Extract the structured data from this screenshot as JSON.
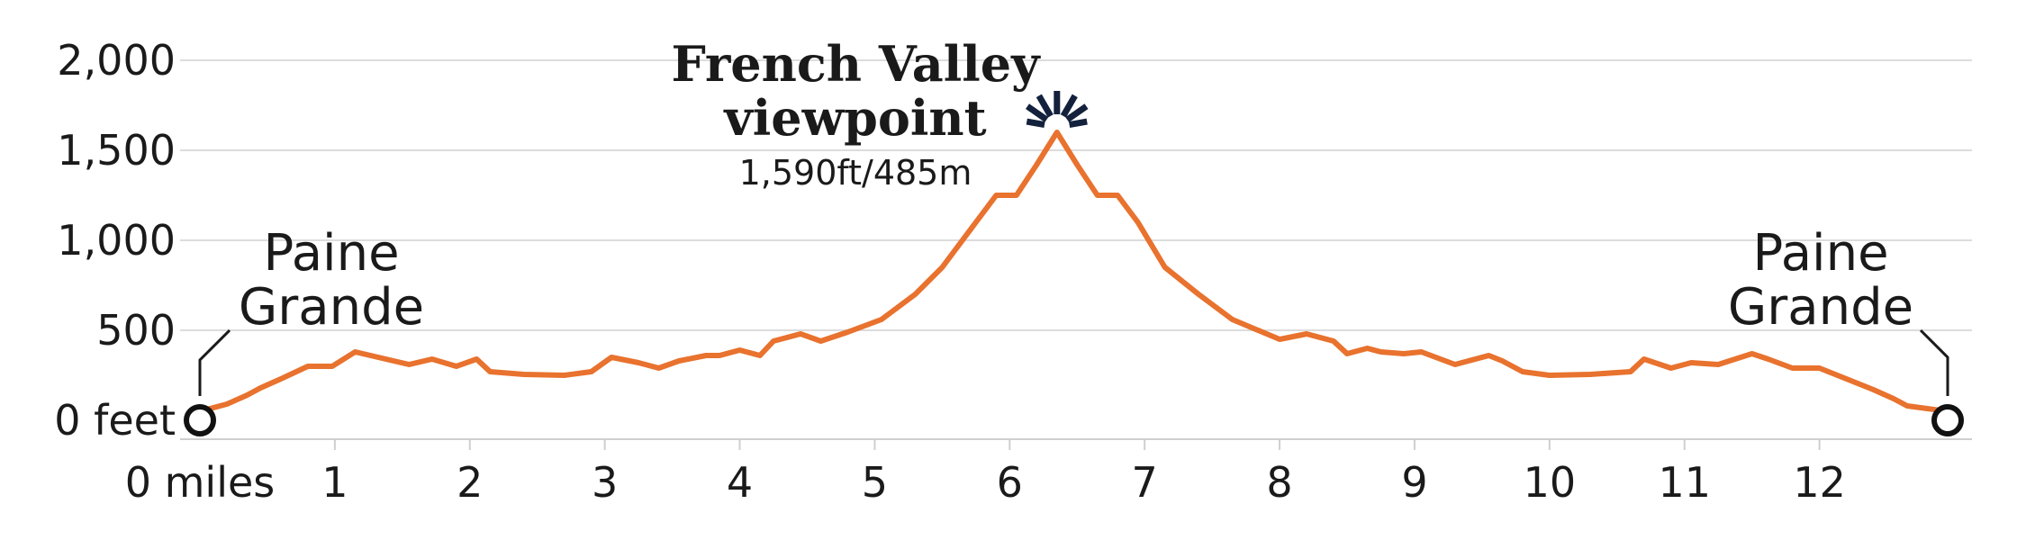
{
  "chart_data": {
    "type": "line",
    "x_unit": "miles",
    "y_unit": "feet",
    "xlim": [
      0,
      12.95
    ],
    "ylim": [
      0,
      2000
    ],
    "grid": true,
    "y_ticks": [
      {
        "value": 0,
        "label": "0 feet"
      },
      {
        "value": 500,
        "label": "500"
      },
      {
        "value": 1000,
        "label": "1,000"
      },
      {
        "value": 1500,
        "label": "1,500"
      },
      {
        "value": 2000,
        "label": "2,000"
      }
    ],
    "x_ticks": [
      {
        "value": 0,
        "label": "0 miles"
      },
      {
        "value": 1,
        "label": "1"
      },
      {
        "value": 2,
        "label": "2"
      },
      {
        "value": 3,
        "label": "3"
      },
      {
        "value": 4,
        "label": "4"
      },
      {
        "value": 5,
        "label": "5"
      },
      {
        "value": 6,
        "label": "6"
      },
      {
        "value": 7,
        "label": "7"
      },
      {
        "value": 8,
        "label": "8"
      },
      {
        "value": 9,
        "label": "9"
      },
      {
        "value": 10,
        "label": "10"
      },
      {
        "value": 11,
        "label": "11"
      },
      {
        "value": 12,
        "label": "12"
      }
    ],
    "series": [
      {
        "color": "#e8722e",
        "x": [
          0,
          0.2,
          0.35,
          0.45,
          0.6,
          0.8,
          0.98,
          1.15,
          1.35,
          1.55,
          1.72,
          1.9,
          2.05,
          2.15,
          2.4,
          2.7,
          2.9,
          3.05,
          3.25,
          3.4,
          3.55,
          3.75,
          3.85,
          4.0,
          4.15,
          4.25,
          4.45,
          4.6,
          4.8,
          5.05,
          5.3,
          5.5,
          5.75,
          5.9,
          6.05,
          6.2,
          6.35,
          6.5,
          6.65,
          6.8,
          6.95,
          7.15,
          7.4,
          7.65,
          8.0,
          8.2,
          8.4,
          8.5,
          8.65,
          8.75,
          8.92,
          9.05,
          9.3,
          9.55,
          9.65,
          9.8,
          10.0,
          10.3,
          10.6,
          10.7,
          10.9,
          11.05,
          11.25,
          11.5,
          11.62,
          11.8,
          12.0,
          12.2,
          12.4,
          12.55,
          12.65,
          12.95
        ],
        "y": [
          50,
          90,
          140,
          180,
          230,
          300,
          300,
          380,
          345,
          310,
          340,
          300,
          340,
          270,
          255,
          250,
          270,
          350,
          320,
          290,
          330,
          360,
          360,
          390,
          360,
          440,
          480,
          440,
          490,
          560,
          700,
          850,
          1100,
          1250,
          1250,
          1420,
          1600,
          1420,
          1250,
          1250,
          1100,
          850,
          700,
          560,
          450,
          480,
          440,
          370,
          400,
          380,
          370,
          380,
          310,
          360,
          330,
          270,
          250,
          255,
          270,
          340,
          290,
          320,
          310,
          370,
          340,
          290,
          290,
          230,
          170,
          120,
          80,
          50
        ]
      }
    ],
    "annotations": [
      {
        "lines": [
          "French Valley",
          "viewpoint"
        ],
        "sub": "1,590ft/485m",
        "x": 6.35,
        "y": 1590,
        "marker": "starburst"
      },
      {
        "lines": [
          "Paine",
          "Grande"
        ],
        "x": 0,
        "y": 0,
        "marker": "circle"
      },
      {
        "lines": [
          "Paine",
          "Grande"
        ],
        "x": 12.95,
        "y": 0,
        "marker": "circle"
      }
    ]
  }
}
